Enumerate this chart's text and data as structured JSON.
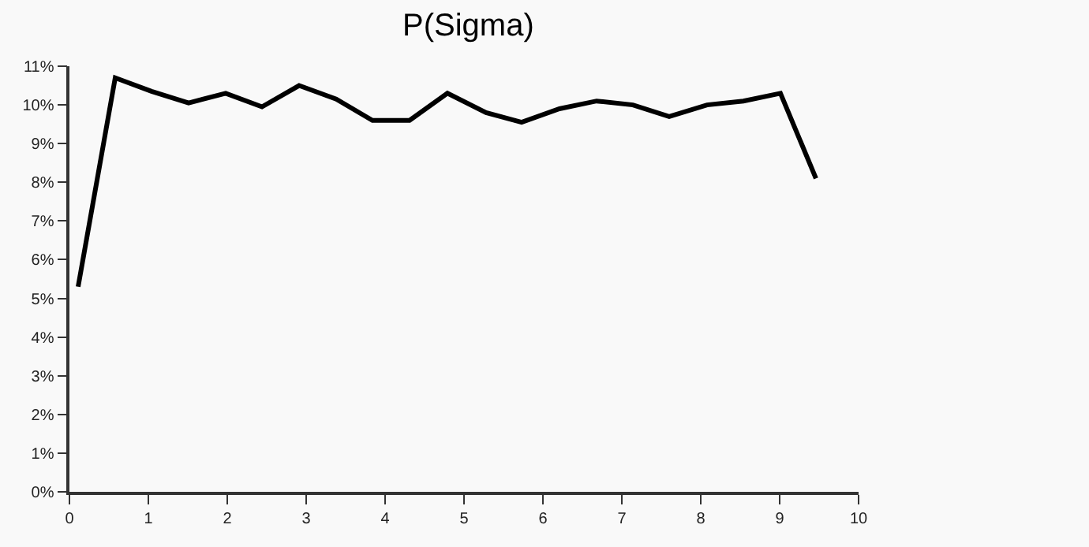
{
  "chart_data": {
    "type": "line",
    "title": "P(Sigma)",
    "x": [
      0.11,
      0.58,
      1.04,
      1.51,
      1.98,
      2.44,
      2.91,
      3.38,
      3.84,
      4.31,
      4.79,
      5.28,
      5.73,
      6.21,
      6.68,
      7.14,
      7.6,
      8.08,
      8.54,
      9.01,
      9.46
    ],
    "series": [
      {
        "color": "#000000",
        "values": [
          5.3,
          10.7,
          10.35,
          10.05,
          10.3,
          9.95,
          10.5,
          10.15,
          9.6,
          9.6,
          10.3,
          9.8,
          9.55,
          9.9,
          10.1,
          10.0,
          9.7,
          10.0,
          10.1,
          10.3,
          8.1
        ]
      }
    ],
    "xlim": [
      0,
      10
    ],
    "xticks": [
      0,
      1,
      2,
      3,
      4,
      5,
      6,
      7,
      8,
      9,
      10
    ],
    "ylim": [
      0,
      11
    ],
    "yticks": [
      {
        "value": 0,
        "label": "0%"
      },
      {
        "value": 1,
        "label": "1%"
      },
      {
        "value": 2,
        "label": "2%"
      },
      {
        "value": 3,
        "label": "3%"
      },
      {
        "value": 4,
        "label": "4%"
      },
      {
        "value": 5,
        "label": "5%"
      },
      {
        "value": 6,
        "label": "6%"
      },
      {
        "value": 7,
        "label": "7%"
      },
      {
        "value": 8,
        "label": "8%"
      },
      {
        "value": 9,
        "label": "9%"
      },
      {
        "value": 10,
        "label": "10%"
      },
      {
        "value": 11,
        "label": "11%"
      }
    ],
    "grid": false,
    "marker": "none",
    "line_style": "solid"
  }
}
